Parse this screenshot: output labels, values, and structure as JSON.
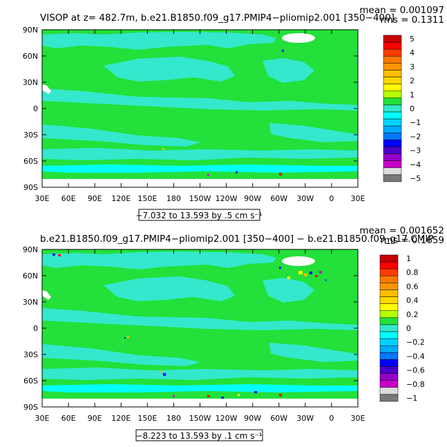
{
  "colors": {
    "land_green": "#23e03a",
    "ocean_cyan": "#33e8cc",
    "ocean_lightblue": "#00ffff",
    "land_white": "#ffffff",
    "frame": "#000000"
  },
  "chart_data": [
    {
      "type": "heatmap",
      "title": "VISOP at z= 482.7m, b.e21.B1850.f09_g17.PMIP4−pliomip2.001 [350−400]",
      "mean_label": "mean = 0.001097",
      "rms_label": "rms = 0.1311",
      "xlim": [
        30,
        390
      ],
      "ylim": [
        -90,
        90
      ],
      "x_ticks": [
        {
          "value": 30,
          "label": "30E"
        },
        {
          "value": 60,
          "label": "60E"
        },
        {
          "value": 90,
          "label": "90E"
        },
        {
          "value": 120,
          "label": "120E"
        },
        {
          "value": 150,
          "label": "150E"
        },
        {
          "value": 180,
          "label": "180"
        },
        {
          "value": 210,
          "label": "150W"
        },
        {
          "value": 240,
          "label": "120W"
        },
        {
          "value": 270,
          "label": "90W"
        },
        {
          "value": 300,
          "label": "60W"
        },
        {
          "value": 330,
          "label": "30W"
        },
        {
          "value": 360,
          "label": "0"
        },
        {
          "value": 390,
          "label": "30E"
        }
      ],
      "y_ticks": [
        {
          "value": 90,
          "label": "90N"
        },
        {
          "value": 60,
          "label": "60N"
        },
        {
          "value": 30,
          "label": "30N"
        },
        {
          "value": 0,
          "label": "0"
        },
        {
          "value": -30,
          "label": "30S"
        },
        {
          "value": -60,
          "label": "60S"
        },
        {
          "value": -90,
          "label": "90S"
        }
      ],
      "range_label": "−7.032 to 13.593 by .5 cm s⁻¹",
      "colorbar": {
        "labels": [
          "5",
          "4",
          "3",
          "2",
          "1",
          "0",
          "−1",
          "−2",
          "−3",
          "−4",
          "−5"
        ],
        "colors": [
          "#c80000",
          "#ff0000",
          "#ff3c00",
          "#ff7800",
          "#ff9600",
          "#ffbe00",
          "#ffd800",
          "#ffff00",
          "#b4ff00",
          "#23e03a",
          "#33e8cc",
          "#00ffff",
          "#00d2ff",
          "#00aaff",
          "#0078ff",
          "#0000ff",
          "#4b00c8",
          "#9600c8",
          "#c800c8",
          "#dcdcdc",
          "#787878"
        ]
      }
    },
    {
      "type": "heatmap",
      "title": "b.e21.B1850.f09_g17.PMIP4−pliomip2.001 [350−400] − b.e21.B1850.f09_g17.CMIP",
      "mean_label": "mean = 0.001652",
      "rms_label": "rms = 0.1659",
      "xlim": [
        30,
        390
      ],
      "ylim": [
        -90,
        90
      ],
      "x_ticks": [
        {
          "value": 30,
          "label": "30E"
        },
        {
          "value": 60,
          "label": "60E"
        },
        {
          "value": 90,
          "label": "90E"
        },
        {
          "value": 120,
          "label": "120E"
        },
        {
          "value": 150,
          "label": "150E"
        },
        {
          "value": 180,
          "label": "180"
        },
        {
          "value": 210,
          "label": "150W"
        },
        {
          "value": 240,
          "label": "120W"
        },
        {
          "value": 270,
          "label": "90W"
        },
        {
          "value": 300,
          "label": "60W"
        },
        {
          "value": 330,
          "label": "30W"
        },
        {
          "value": 360,
          "label": "0"
        },
        {
          "value": 390,
          "label": "30E"
        }
      ],
      "y_ticks": [
        {
          "value": 90,
          "label": "90N"
        },
        {
          "value": 60,
          "label": "60N"
        },
        {
          "value": 30,
          "label": "30N"
        },
        {
          "value": 0,
          "label": "0"
        },
        {
          "value": -30,
          "label": "30S"
        },
        {
          "value": -60,
          "label": "60S"
        },
        {
          "value": -90,
          "label": "90S"
        }
      ],
      "range_label": "−8.223 to 13.593 by .1 cm s⁻¹",
      "colorbar": {
        "labels": [
          "1",
          "0.8",
          "0.6",
          "0.4",
          "0.2",
          "0",
          "−0.2",
          "−0.4",
          "−0.6",
          "−0.8",
          "−1"
        ],
        "colors": [
          "#c80000",
          "#ff0000",
          "#ff3c00",
          "#ff7800",
          "#ff9600",
          "#ffbe00",
          "#ffd800",
          "#ffff00",
          "#b4ff00",
          "#23e03a",
          "#33e8cc",
          "#00ffff",
          "#00d2ff",
          "#00aaff",
          "#0078ff",
          "#0000ff",
          "#4b00c8",
          "#9600c8",
          "#c800c8",
          "#dcdcdc",
          "#787878"
        ]
      }
    }
  ]
}
